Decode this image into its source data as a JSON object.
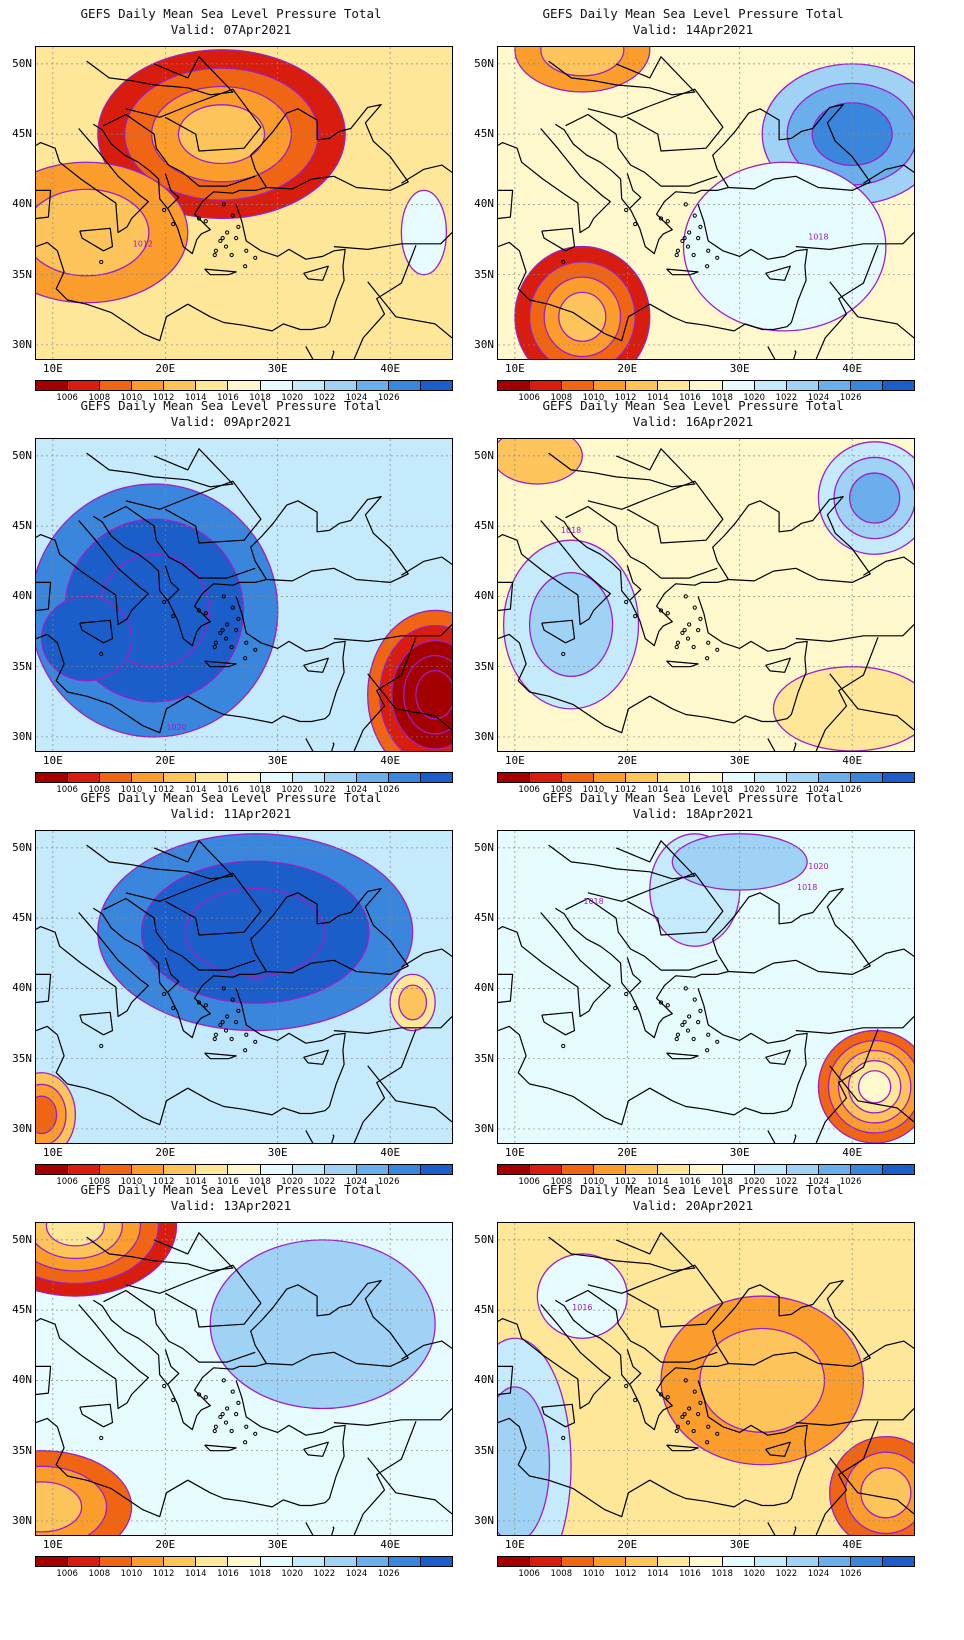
{
  "palette": [
    "#a50000",
    "#d81d0e",
    "#f06513",
    "#fb9d2d",
    "#fdc45c",
    "#ffe79a",
    "#fff8cc",
    "#e6fbff",
    "#c4eafc",
    "#9fd2f5",
    "#6aaeeb",
    "#3a86dd",
    "#1c5ec9"
  ],
  "contour_color": "#9a20c8",
  "colorbar_labels": [
    "1006",
    "1008",
    "1010",
    "1012",
    "1014",
    "1016",
    "1018",
    "1020",
    "1022",
    "1024",
    "1026"
  ],
  "lat_labels": [
    "50N",
    "45N",
    "40N",
    "35N",
    "30N"
  ],
  "lon_labels": [
    "10E",
    "20E",
    "30E",
    "40E"
  ],
  "panels": [
    {
      "title": "GEFS Daily Mean Sea Level Pressure Total",
      "valid": "Valid: 07Apr2021",
      "base": 5,
      "features": [
        {
          "lon": 25,
          "lat": 45,
          "rx": 11,
          "ry": 6,
          "lvl": 1,
          "step": 1,
          "n": 4
        },
        {
          "lon": 13,
          "lat": 38,
          "rx": 9,
          "ry": 5,
          "lvl": 3,
          "step": 1,
          "n": 2
        },
        {
          "lon": 43,
          "lat": 38,
          "rx": 2,
          "ry": 3,
          "lvl": 7,
          "step": 1,
          "n": 1
        }
      ],
      "clabels": [
        {
          "lon": 18,
          "lat": 37,
          "t": "1012"
        }
      ]
    },
    {
      "title": "GEFS Daily Mean Sea Level Pressure Total",
      "valid": "Valid: 09Apr2021",
      "base": 8,
      "features": [
        {
          "lon": 19,
          "lat": 39,
          "rx": 11,
          "ry": 9,
          "lvl": 11,
          "step": 1,
          "n": 3
        },
        {
          "lon": 44,
          "lat": 33,
          "rx": 6,
          "ry": 6,
          "lvl": 2,
          "step": -1,
          "n": 5
        },
        {
          "lon": 13,
          "lat": 37,
          "rx": 4,
          "ry": 3,
          "lvl": 12,
          "step": 1,
          "n": 1
        }
      ],
      "clabels": [
        {
          "lon": 21,
          "lat": 30.5,
          "t": "1020"
        }
      ]
    },
    {
      "title": "GEFS Daily Mean Sea Level Pressure Total",
      "valid": "Valid: 11Apr2021",
      "base": 8,
      "features": [
        {
          "lon": 28,
          "lat": 44,
          "rx": 14,
          "ry": 7,
          "lvl": 11,
          "step": 1,
          "n": 3
        },
        {
          "lon": 42,
          "lat": 39,
          "rx": 2,
          "ry": 2,
          "lvl": 5,
          "step": -1,
          "n": 2
        },
        {
          "lon": 9,
          "lat": 31,
          "rx": 3,
          "ry": 3,
          "lvl": 4,
          "step": -1,
          "n": 3
        }
      ],
      "clabels": [
        {
          "lon": 28,
          "lat": 40.5,
          "t": "1024"
        }
      ]
    },
    {
      "title": "GEFS Daily Mean Sea Level Pressure Total",
      "valid": "Valid: 13Apr2021",
      "base": 7,
      "features": [
        {
          "lon": 12,
          "lat": 51,
          "rx": 9,
          "ry": 5,
          "lvl": 1,
          "step": 1,
          "n": 5
        },
        {
          "lon": 9,
          "lat": 31,
          "rx": 8,
          "ry": 4,
          "lvl": 2,
          "step": 1,
          "n": 3
        },
        {
          "lon": 39,
          "lat": 43,
          "rx": 2,
          "ry": 1,
          "lvl": 11,
          "step": 1,
          "n": 1
        },
        {
          "lon": 34,
          "lat": 44,
          "rx": 10,
          "ry": 6,
          "lvl": 9,
          "step": 1,
          "n": 1
        }
      ],
      "clabels": []
    },
    {
      "title": "GEFS Daily Mean Sea Level Pressure Total",
      "valid": "Valid: 14Apr2021",
      "base": 6,
      "features": [
        {
          "lon": 16,
          "lat": 32,
          "rx": 6,
          "ry": 5,
          "lvl": 1,
          "step": 1,
          "n": 4
        },
        {
          "lon": 40,
          "lat": 45,
          "rx": 8,
          "ry": 5,
          "lvl": 9,
          "step": 1,
          "n": 3
        },
        {
          "lon": 16,
          "lat": 51,
          "rx": 6,
          "ry": 3,
          "lvl": 3,
          "step": 1,
          "n": 2
        },
        {
          "lon": 34,
          "lat": 37,
          "rx": 9,
          "ry": 6,
          "lvl": 7,
          "step": 1,
          "n": 1
        }
      ],
      "clabels": [
        {
          "lon": 37,
          "lat": 37.5,
          "t": "1018"
        }
      ]
    },
    {
      "title": "GEFS Daily Mean Sea Level Pressure Total",
      "valid": "Valid: 16Apr2021",
      "base": 6,
      "features": [
        {
          "lon": 15,
          "lat": 38,
          "rx": 6,
          "ry": 6,
          "lvl": 8,
          "step": 1,
          "n": 2
        },
        {
          "lon": 42,
          "lat": 47,
          "rx": 5,
          "ry": 4,
          "lvl": 8,
          "step": 1,
          "n": 3
        },
        {
          "lon": 40,
          "lat": 32,
          "rx": 7,
          "ry": 3,
          "lvl": 5,
          "step": -1,
          "n": 1
        },
        {
          "lon": 12,
          "lat": 50,
          "rx": 4,
          "ry": 2,
          "lvl": 4,
          "step": 1,
          "n": 1
        }
      ],
      "clabels": [
        {
          "lon": 15,
          "lat": 44.5,
          "t": "1018"
        }
      ]
    },
    {
      "title": "GEFS Daily Mean Sea Level Pressure Total",
      "valid": "Valid: 18Apr2021",
      "base": 7,
      "features": [
        {
          "lon": 42,
          "lat": 33,
          "rx": 5,
          "ry": 4,
          "lvl": 2,
          "step": 1,
          "n": 5
        },
        {
          "lon": 26,
          "lat": 47,
          "rx": 4,
          "ry": 4,
          "lvl": 8,
          "step": 1,
          "n": 1
        },
        {
          "lon": 30,
          "lat": 49,
          "rx": 6,
          "ry": 2,
          "lvl": 9,
          "step": 1,
          "n": 1
        }
      ],
      "clabels": [
        {
          "lon": 17,
          "lat": 46,
          "t": "1018"
        },
        {
          "lon": 37,
          "lat": 48.5,
          "t": "1020"
        },
        {
          "lon": 36,
          "lat": 47,
          "t": "1018"
        }
      ]
    },
    {
      "title": "GEFS Daily Mean Sea Level Pressure Total",
      "valid": "Valid: 20Apr2021",
      "base": 5,
      "features": [
        {
          "lon": 32,
          "lat": 40,
          "rx": 9,
          "ry": 6,
          "lvl": 3,
          "step": 1,
          "n": 2
        },
        {
          "lon": 43,
          "lat": 32,
          "rx": 5,
          "ry": 4,
          "lvl": 2,
          "step": 1,
          "n": 3
        },
        {
          "lon": 10,
          "lat": 34,
          "rx": 5,
          "ry": 9,
          "lvl": 8,
          "step": 1,
          "n": 2
        },
        {
          "lon": 16,
          "lat": 46,
          "rx": 4,
          "ry": 3,
          "lvl": 7,
          "step": 1,
          "n": 1
        }
      ],
      "clabels": [
        {
          "lon": 16,
          "lat": 45,
          "t": "1016"
        }
      ]
    }
  ]
}
